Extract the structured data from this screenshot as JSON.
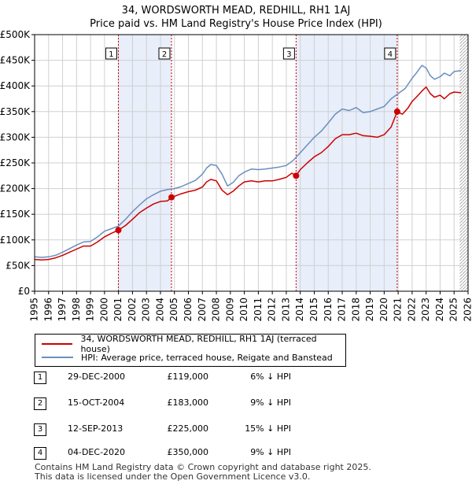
{
  "title_line1": "34, WORDSWORTH MEAD, REDHILL, RH1 1AJ",
  "title_line2": "Price paid vs. HM Land Registry's House Price Index (HPI)",
  "colors": {
    "property": "#cc0000",
    "hpi": "#6a8fc0",
    "band": "#e8eefa",
    "marker_line": "#cc0000",
    "grid": "#d0d0d0"
  },
  "legend": {
    "property_label": "34, WORDSWORTH MEAD, REDHILL, RH1 1AJ (terraced house)",
    "hpi_label": "HPI: Average price, terraced house, Reigate and Banstead"
  },
  "sales": [
    {
      "num": "1",
      "date": "29-DEC-2000",
      "price": "£119,000",
      "hpi_diff": "6% ↓ HPI"
    },
    {
      "num": "2",
      "date": "15-OCT-2004",
      "price": "£183,000",
      "hpi_diff": "9% ↓ HPI"
    },
    {
      "num": "3",
      "date": "12-SEP-2013",
      "price": "£225,000",
      "hpi_diff": "15% ↓ HPI"
    },
    {
      "num": "4",
      "date": "04-DEC-2020",
      "price": "£350,000",
      "hpi_diff": "9% ↓ HPI"
    }
  ],
  "footer_line1": "Contains HM Land Registry data © Crown copyright and database right 2025.",
  "footer_line2": "This data is licensed under the Open Government Licence v3.0.",
  "chart_data": {
    "type": "line",
    "title": "Price paid vs. HM Land Registry's House Price Index (HPI)",
    "xlabel": "",
    "ylabel": "",
    "xlim": [
      1995,
      2026
    ],
    "ylim": [
      0,
      500000
    ],
    "x_ticks": [
      1995,
      1996,
      1997,
      1998,
      1999,
      2000,
      2001,
      2002,
      2003,
      2004,
      2005,
      2006,
      2007,
      2008,
      2009,
      2010,
      2011,
      2012,
      2013,
      2014,
      2015,
      2016,
      2017,
      2018,
      2019,
      2020,
      2021,
      2022,
      2023,
      2024,
      2025,
      2026
    ],
    "y_ticks": [
      0,
      50000,
      100000,
      150000,
      200000,
      250000,
      300000,
      350000,
      400000,
      450000,
      500000
    ],
    "y_tick_labels": [
      "£0",
      "£50K",
      "£100K",
      "£150K",
      "£200K",
      "£250K",
      "£300K",
      "£350K",
      "£400K",
      "£450K",
      "£500K"
    ],
    "shaded_periods": [
      [
        2000.99,
        2004.79
      ],
      [
        2013.7,
        2020.93
      ]
    ],
    "hatched_from": 2025.4,
    "markers": [
      {
        "num": "1",
        "x": 2000.99,
        "y": 119000
      },
      {
        "num": "2",
        "x": 2004.79,
        "y": 183000
      },
      {
        "num": "3",
        "x": 2013.7,
        "y": 225000
      },
      {
        "num": "4",
        "x": 2020.93,
        "y": 350000
      }
    ],
    "series": [
      {
        "name": "34, WORDSWORTH MEAD, REDHILL, RH1 1AJ (terraced house)",
        "color": "#cc0000",
        "x": [
          1995,
          1995.5,
          1996,
          1996.5,
          1997,
          1997.5,
          1998,
          1998.5,
          1999,
          1999.5,
          2000,
          2000.5,
          2000.99,
          2001.5,
          2002,
          2002.5,
          2003,
          2003.5,
          2004,
          2004.5,
          2004.79,
          2005,
          2005.5,
          2006,
          2006.5,
          2007,
          2007.3,
          2007.6,
          2008,
          2008.4,
          2008.8,
          2009.2,
          2009.6,
          2010,
          2010.5,
          2011,
          2011.5,
          2012,
          2012.5,
          2013,
          2013.4,
          2013.7,
          2014,
          2014.5,
          2015,
          2015.5,
          2016,
          2016.5,
          2017,
          2017.5,
          2018,
          2018.5,
          2019,
          2019.5,
          2020,
          2020.5,
          2020.93,
          2021.3,
          2021.7,
          2022,
          2022.3,
          2022.7,
          2023,
          2023.3,
          2023.6,
          2024,
          2024.3,
          2024.7,
          2025,
          2025.5
        ],
        "values": [
          62000,
          61000,
          62000,
          65000,
          70000,
          76000,
          82000,
          88000,
          88000,
          96000,
          106000,
          113000,
          119000,
          128000,
          140000,
          153000,
          162000,
          170000,
          175000,
          176000,
          183000,
          185000,
          190000,
          194000,
          197000,
          203000,
          213000,
          218000,
          215000,
          197000,
          188000,
          195000,
          205000,
          213000,
          215000,
          213000,
          215000,
          215000,
          218000,
          222000,
          230000,
          225000,
          237000,
          250000,
          262000,
          270000,
          282000,
          297000,
          305000,
          305000,
          308000,
          303000,
          302000,
          300000,
          305000,
          320000,
          350000,
          345000,
          357000,
          370000,
          378000,
          390000,
          398000,
          385000,
          378000,
          382000,
          375000,
          385000,
          388000,
          387000
        ]
      },
      {
        "name": "HPI: Average price, terraced house, Reigate and Banstead",
        "color": "#6a8fc0",
        "x": [
          1995,
          1995.5,
          1996,
          1996.5,
          1997,
          1997.5,
          1998,
          1998.5,
          1999,
          1999.5,
          2000,
          2000.5,
          2001,
          2001.5,
          2002,
          2002.5,
          2003,
          2003.5,
          2004,
          2004.5,
          2005,
          2005.5,
          2006,
          2006.5,
          2007,
          2007.3,
          2007.6,
          2008,
          2008.4,
          2008.8,
          2009.2,
          2009.6,
          2010,
          2010.5,
          2011,
          2011.5,
          2012,
          2012.5,
          2013,
          2013.5,
          2014,
          2014.5,
          2015,
          2015.5,
          2016,
          2016.5,
          2017,
          2017.5,
          2018,
          2018.5,
          2019,
          2019.5,
          2020,
          2020.5,
          2021,
          2021.5,
          2022,
          2022.3,
          2022.7,
          2023,
          2023.3,
          2023.6,
          2024,
          2024.3,
          2024.7,
          2025,
          2025.5
        ],
        "values": [
          67000,
          66000,
          67000,
          70000,
          76000,
          83000,
          90000,
          96000,
          97000,
          106000,
          117000,
          122000,
          127000,
          140000,
          155000,
          168000,
          180000,
          188000,
          195000,
          198000,
          200000,
          204000,
          210000,
          216000,
          228000,
          240000,
          247000,
          245000,
          228000,
          205000,
          212000,
          225000,
          232000,
          238000,
          237000,
          238000,
          240000,
          242000,
          245000,
          255000,
          270000,
          285000,
          300000,
          312000,
          328000,
          345000,
          355000,
          352000,
          358000,
          348000,
          350000,
          355000,
          360000,
          375000,
          385000,
          395000,
          415000,
          425000,
          440000,
          435000,
          420000,
          413000,
          418000,
          425000,
          420000,
          428000,
          430000
        ]
      }
    ]
  }
}
